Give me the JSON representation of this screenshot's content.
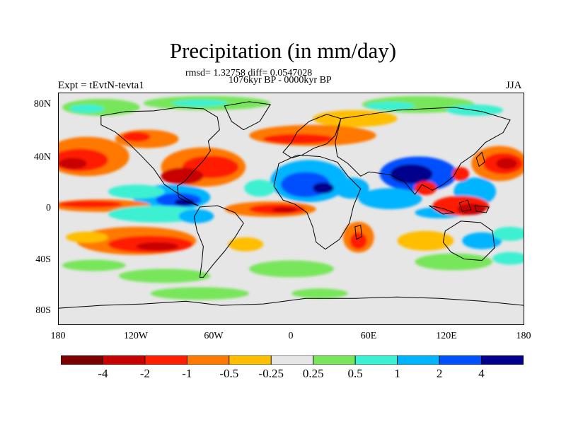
{
  "title": "Precipitation (in mm/day)",
  "stats": "rmsd= 1.32758 diff= 0.0547028",
  "period": "1076kyr BP - 0000kyr BP",
  "experiment": "Expt = tEvtN-tevta1",
  "season": "JJA",
  "y_ticks": [
    "80N",
    "40N",
    "0",
    "40S",
    "80S"
  ],
  "x_ticks": [
    "180",
    "120W",
    "60W",
    "0",
    "60E",
    "120E",
    "180"
  ],
  "colorbar": {
    "colors": [
      "#7d0000",
      "#c80000",
      "#ff1e00",
      "#ff7800",
      "#ffbe00",
      "#e6e6e6",
      "#78e65a",
      "#3cf0d2",
      "#00b4ff",
      "#0050ff",
      "#00008c"
    ],
    "labels": [
      "-4",
      "-2",
      "-1",
      "-0.5",
      "-0.25",
      "0.25",
      "0.5",
      "1",
      "2",
      "4"
    ]
  }
}
